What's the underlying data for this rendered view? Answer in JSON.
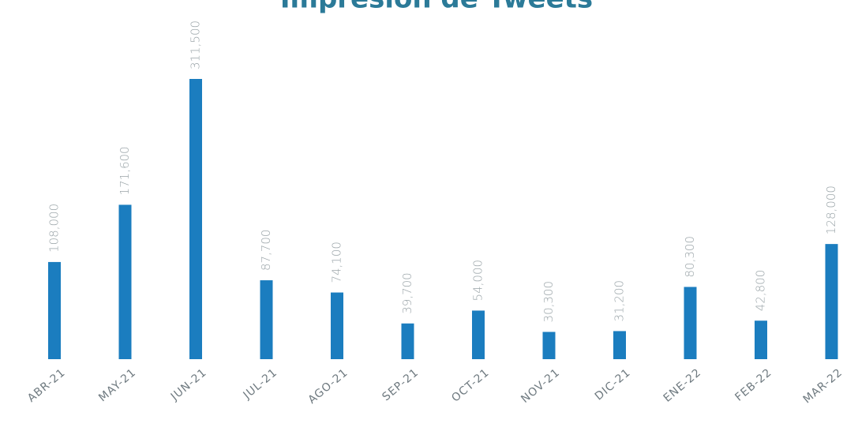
{
  "chart_data": {
    "type": "bar",
    "title": "Impresión de Tweets",
    "categories": [
      "ABR-21",
      "MAY-21",
      "JUN-21",
      "JUL-21",
      "AGO-21",
      "SEP-21",
      "OCT-21",
      "NOV-21",
      "DIC-21",
      "ENE-22",
      "FEB-22",
      "MAR-22"
    ],
    "values": [
      108000,
      171600,
      311500,
      87700,
      74100,
      39700,
      54000,
      30300,
      31200,
      80300,
      42800,
      128000
    ],
    "value_labels": [
      "108,000",
      "171,600",
      "311,500",
      "87,700",
      "74,100",
      "39,700",
      "54,000",
      "30,300",
      "31,200",
      "80,300",
      "42,800",
      "128,000"
    ],
    "color": "#1b7dbf"
  }
}
